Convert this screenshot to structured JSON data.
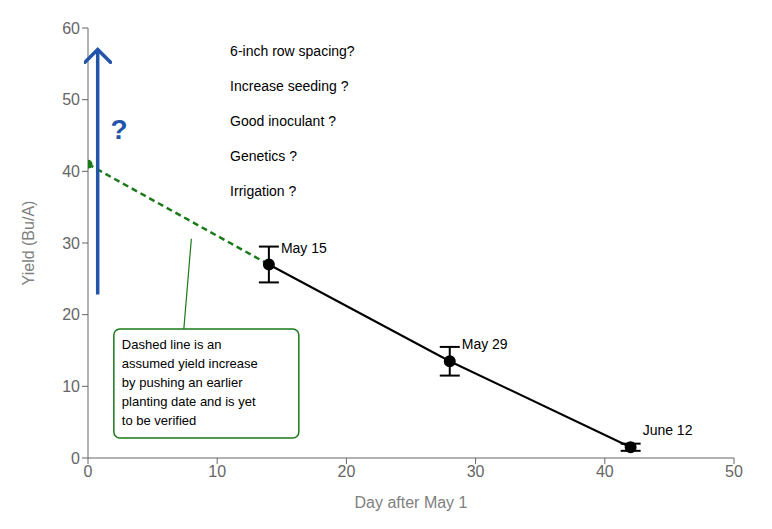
{
  "chart_data": {
    "type": "line",
    "x_label": "Day after May 1",
    "y_label": "Yield (Bu/A)",
    "xlim": [
      0,
      50
    ],
    "ylim": [
      0,
      60
    ],
    "xticks": [
      0,
      10,
      20,
      30,
      40,
      50
    ],
    "yticks": [
      0,
      10,
      20,
      30,
      40,
      50,
      60
    ],
    "grid": false,
    "series": [
      {
        "x": [
          14,
          28,
          42
        ],
        "values": [
          27.0,
          13.5,
          1.5
        ],
        "errors": [
          2.5,
          2.0,
          0.5
        ],
        "labels": [
          "May 15",
          "May 29",
          "June 12"
        ],
        "color": "#000000",
        "marker": "circle",
        "line_style": "solid"
      },
      {
        "x": [
          0,
          14
        ],
        "values": [
          41.0,
          27.0
        ],
        "color": "#1a7a1a",
        "marker": "none",
        "line_style": "dashed"
      },
      {
        "type": "scatter",
        "x": [
          0
        ],
        "values": [
          41.0
        ],
        "color": "#1a7a1a",
        "marker": "circle"
      }
    ],
    "annotations": {
      "question_mark": {
        "text": "?",
        "color": "#2255aa"
      },
      "questions": [
        "6-inch row spacing?",
        "Increase seeding ?",
        "Good inoculant ?",
        "Genetics ?",
        "Irrigation ?"
      ],
      "note": {
        "text": "Dashed line is an\nassumed yield increase\nby pushing an earlier\nplanting date and is yet\nto be verified",
        "color": "#1a7a1a"
      }
    }
  }
}
